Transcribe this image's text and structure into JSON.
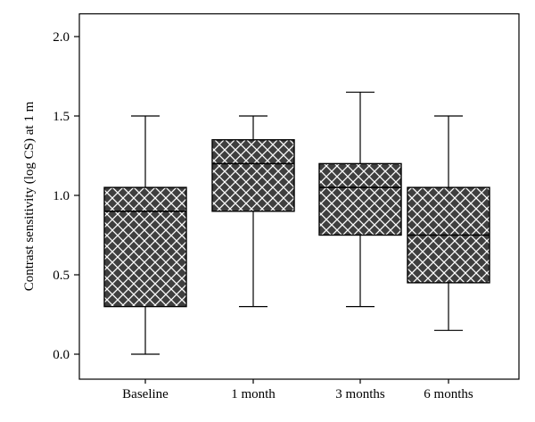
{
  "chart_data": {
    "type": "box",
    "title": "",
    "xlabel": "",
    "ylabel": "Contrast sensitivity (log CS) at 1 m",
    "ylim": [
      0.0,
      2.0
    ],
    "yticks": [
      "0.0",
      "0.5",
      "1.0",
      "1.5",
      "2.0"
    ],
    "grid": false,
    "legend": "none",
    "categories": [
      "Baseline",
      "1 month",
      "3 months",
      "6 months"
    ],
    "boxes": [
      {
        "category": "Baseline",
        "min": 0.0,
        "q1": 0.3,
        "median": 0.9,
        "q3": 1.05,
        "max": 1.5
      },
      {
        "category": "1 month",
        "min": 0.3,
        "q1": 0.9,
        "median": 1.2,
        "q3": 1.35,
        "max": 1.5
      },
      {
        "category": "3 months",
        "min": 0.3,
        "q1": 0.75,
        "median": 1.05,
        "q3": 1.2,
        "max": 1.65
      },
      {
        "category": "6 months",
        "min": 0.15,
        "q1": 0.45,
        "median": 0.75,
        "q3": 1.05,
        "max": 1.5
      }
    ],
    "colors": {
      "box_fill": "#3f3f3f",
      "hatch": "#ffffff",
      "stroke": "#000000"
    }
  }
}
